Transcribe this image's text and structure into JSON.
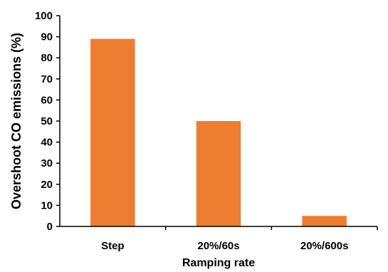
{
  "chart_data": {
    "type": "bar",
    "categories": [
      "Step",
      "20%/60s",
      "20%/600s"
    ],
    "values": [
      89,
      50,
      5
    ],
    "xlabel": "Ramping rate",
    "ylabel": "Overshoot CO emissions (%)",
    "ylim": [
      0,
      100
    ],
    "yticks": [
      0,
      10,
      20,
      30,
      40,
      50,
      60,
      70,
      80,
      90,
      100
    ],
    "grid": false,
    "bar_color": "#ED7D31"
  }
}
